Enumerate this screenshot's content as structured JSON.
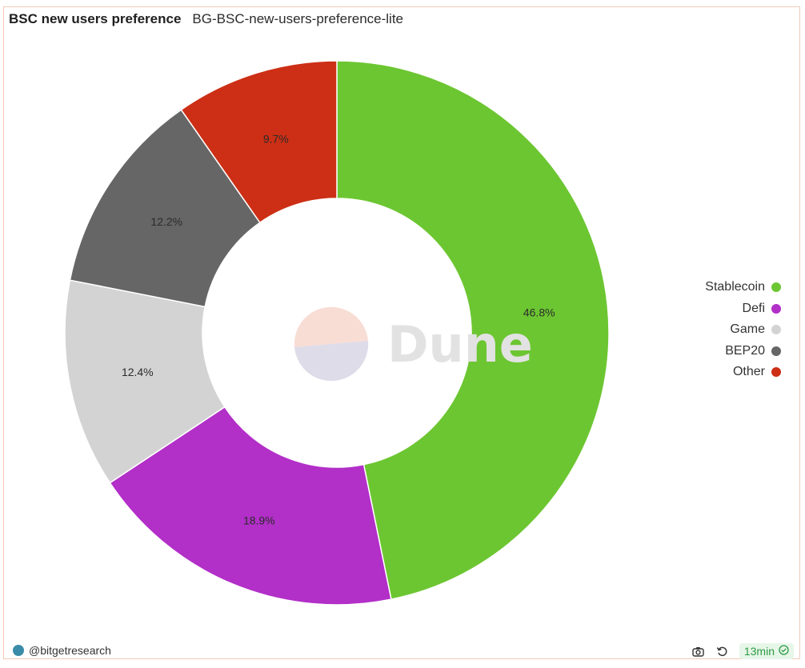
{
  "header": {
    "title": "BSC new users preference",
    "subtitle": "BG-BSC-new-users-preference-lite"
  },
  "watermark": {
    "text": "Dune"
  },
  "chart_data": {
    "type": "pie",
    "donut": true,
    "categories": [
      "Stablecoin",
      "Defi",
      "Game",
      "BEP20",
      "Other"
    ],
    "values": [
      46.8,
      18.9,
      12.4,
      12.2,
      9.7
    ],
    "labels": [
      "46.8%",
      "18.9%",
      "12.4%",
      "12.2%",
      "9.7%"
    ],
    "colors": [
      "#6cc631",
      "#b22fc8",
      "#d3d3d3",
      "#666666",
      "#cc2f15"
    ],
    "legend_position": "right"
  },
  "legend": {
    "items": [
      {
        "label": "Stablecoin",
        "color": "#6cc631"
      },
      {
        "label": "Defi",
        "color": "#b22fc8"
      },
      {
        "label": "Game",
        "color": "#d3d3d3"
      },
      {
        "label": "BEP20",
        "color": "#666666"
      },
      {
        "label": "Other",
        "color": "#cc2f15"
      }
    ]
  },
  "footer": {
    "author": "@bitgetresearch",
    "refresh_age": "13min"
  }
}
